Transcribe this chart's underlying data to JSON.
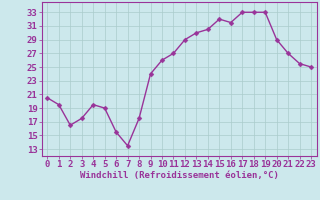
{
  "x": [
    0,
    1,
    2,
    3,
    4,
    5,
    6,
    7,
    8,
    9,
    10,
    11,
    12,
    13,
    14,
    15,
    16,
    17,
    18,
    19,
    20,
    21,
    22,
    23
  ],
  "y": [
    20.5,
    19.5,
    16.5,
    17.5,
    19.5,
    19.0,
    15.5,
    13.5,
    17.5,
    24.0,
    26.0,
    27.0,
    29.0,
    30.0,
    30.5,
    32.0,
    31.5,
    33.0,
    33.0,
    33.0,
    29.0,
    27.0,
    25.5,
    25.0
  ],
  "line_color": "#993399",
  "marker_color": "#993399",
  "bg_color": "#cce8ec",
  "grid_color": "#aacccc",
  "xlabel": "Windchill (Refroidissement éolien,°C)",
  "yticks": [
    13,
    15,
    17,
    19,
    21,
    23,
    25,
    27,
    29,
    31,
    33
  ],
  "xticks": [
    0,
    1,
    2,
    3,
    4,
    5,
    6,
    7,
    8,
    9,
    10,
    11,
    12,
    13,
    14,
    15,
    16,
    17,
    18,
    19,
    20,
    21,
    22,
    23
  ],
  "ylim": [
    12.0,
    34.5
  ],
  "xlim": [
    -0.5,
    23.5
  ],
  "font_color": "#993399",
  "font_size": 6.5,
  "marker_size": 2.5,
  "line_width": 1.0
}
